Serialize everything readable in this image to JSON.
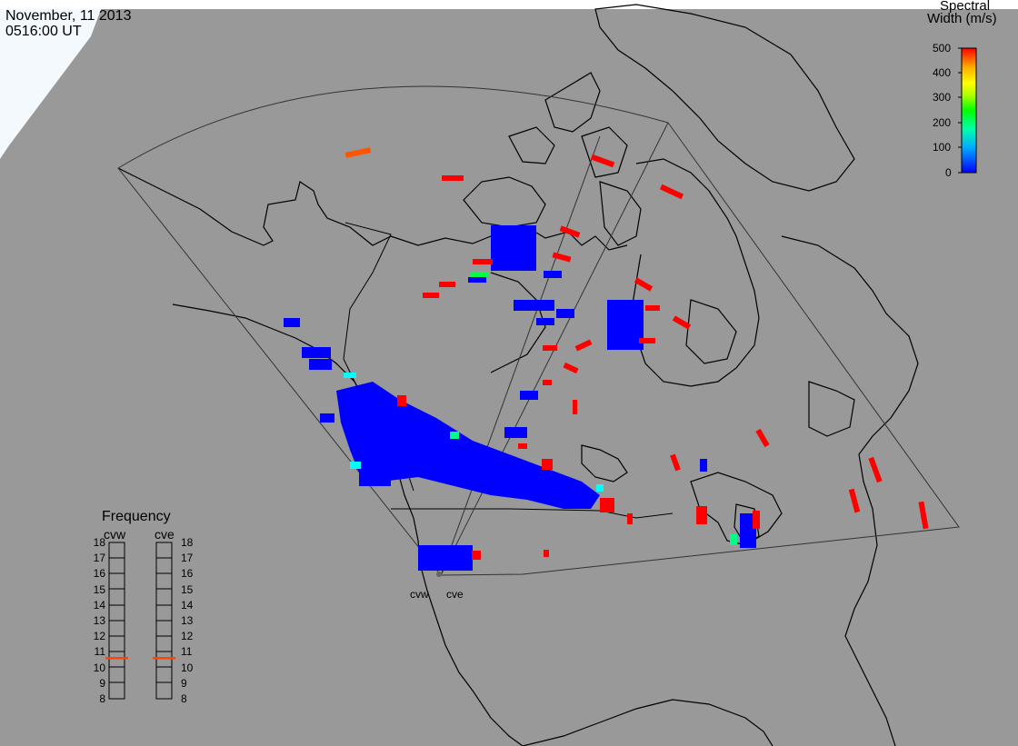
{
  "title": {
    "date": "November, 11 2013",
    "time": "0516:00 UT"
  },
  "colorbar": {
    "title_line1": "Spectral",
    "title_line2": "Width (m/s)",
    "ticks": [
      "500",
      "400",
      "300",
      "200",
      "100",
      "0"
    ],
    "range": [
      0,
      500
    ],
    "colors": [
      "#0000ff",
      "#00aaff",
      "#00ffaa",
      "#00ff00",
      "#aaff00",
      "#ffff00",
      "#ffaa00",
      "#ff5500",
      "#ff0000"
    ]
  },
  "frequency_panel": {
    "title": "Frequency",
    "radars": [
      {
        "name": "cvw",
        "value_mhz": 10.6
      },
      {
        "name": "cve",
        "value_mhz": 10.6
      }
    ],
    "ticks": [
      "18",
      "17",
      "16",
      "15",
      "14",
      "13",
      "12",
      "11",
      "10",
      "9",
      "8"
    ],
    "marker_color": "#ff4400"
  },
  "sites": {
    "cvw": "cvw",
    "cve": "cve"
  },
  "colors": {
    "background": "#999999",
    "land_line": "#000000",
    "fov_line": "#333333",
    "low_width": "#0000ff",
    "high_width": "#ff0000"
  }
}
